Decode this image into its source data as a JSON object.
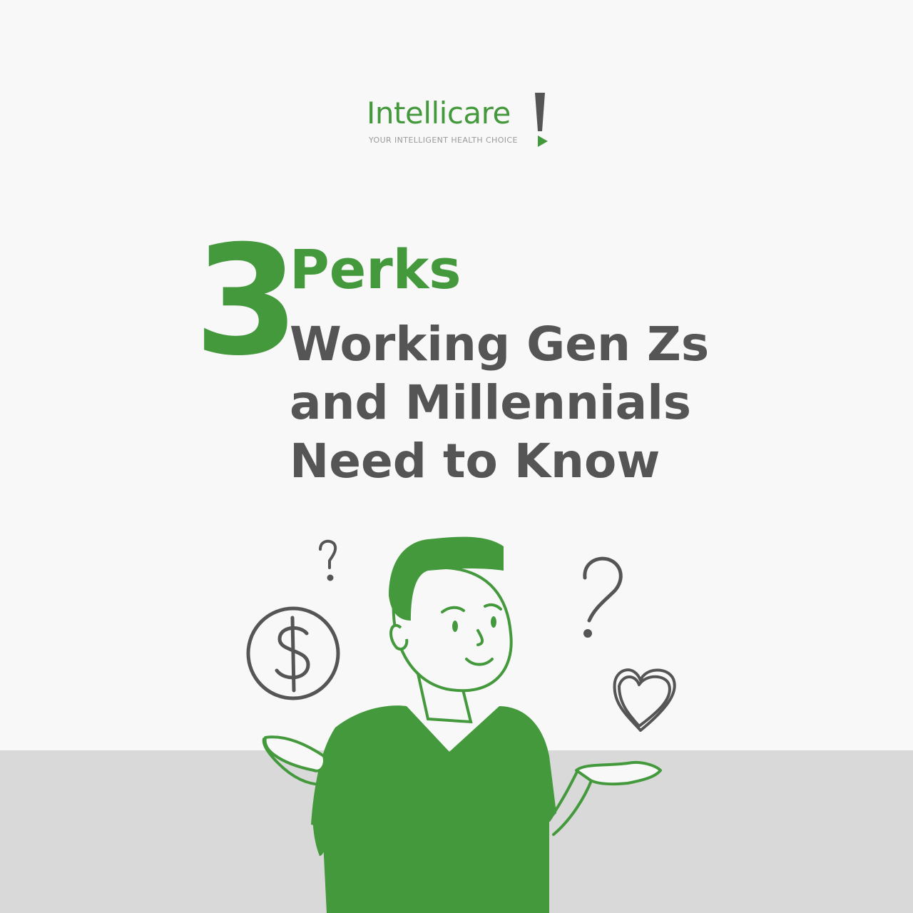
{
  "brand": {
    "name": "Intellicare",
    "tagline": "YOUR INTELLIGENT HEALTH CHOICE",
    "green": "#43993c",
    "gray": "#555555"
  },
  "headline": {
    "number": "3",
    "perks": "Perks",
    "line1": "Working Gen Zs",
    "line2": "and Millennials",
    "line3": "Need to Know"
  },
  "illustration": {
    "icons": [
      "question-mark-icon",
      "dollar-coin-icon",
      "heart-icon",
      "person-shrugging"
    ]
  }
}
